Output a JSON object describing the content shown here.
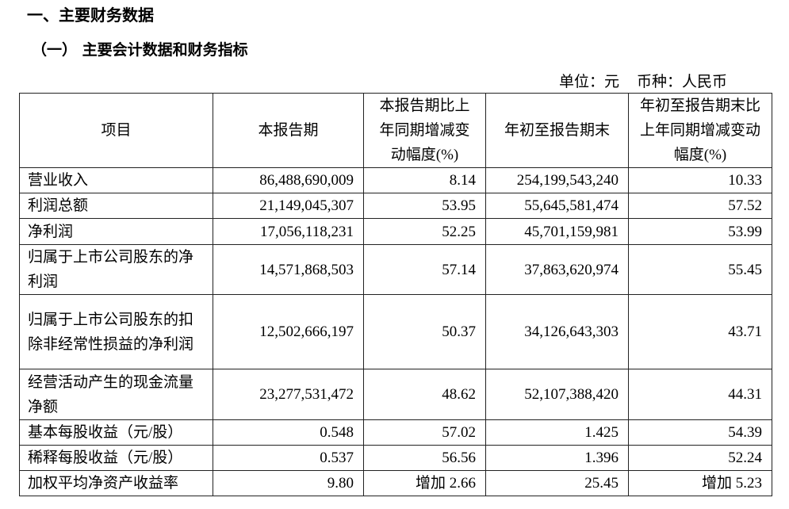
{
  "section_title": "一、主要财务数据",
  "subsection_title": "（一） 主要会计数据和财务指标",
  "unit": {
    "unit_label": "单位：元",
    "currency_label": "币种：人民币"
  },
  "table": {
    "headers": [
      "项目",
      "本报告期",
      "本报告期比上年同期增减变动幅度(%)",
      "年初至报告期末",
      "年初至报告期末比上年同期增减变动幅度(%)"
    ],
    "rows": [
      [
        "营业收入",
        "86,488,690,009",
        "8.14",
        "254,199,543,240",
        "10.33"
      ],
      [
        "利润总额",
        "21,149,045,307",
        "53.95",
        "55,645,581,474",
        "57.52"
      ],
      [
        "净利润",
        "17,056,118,231",
        "52.25",
        "45,701,159,981",
        "53.99"
      ],
      [
        "归属于上市公司股东的净利润",
        "14,571,868,503",
        "57.14",
        "37,863,620,974",
        "55.45"
      ],
      [
        "归属于上市公司股东的扣除非经常性损益的净利润",
        "12,502,666,197",
        "50.37",
        "34,126,643,303",
        "43.71"
      ],
      [
        "经营活动产生的现金流量净额",
        "23,277,531,472",
        "48.62",
        "52,107,388,420",
        "44.31"
      ],
      [
        "基本每股收益（元/股）",
        "0.548",
        "57.02",
        "1.425",
        "54.39"
      ],
      [
        "稀释每股收益（元/股）",
        "0.537",
        "56.56",
        "1.396",
        "52.24"
      ],
      [
        "加权平均净资产收益率",
        "9.80",
        "增加 2.66",
        "25.45",
        "增加 5.23"
      ]
    ]
  }
}
